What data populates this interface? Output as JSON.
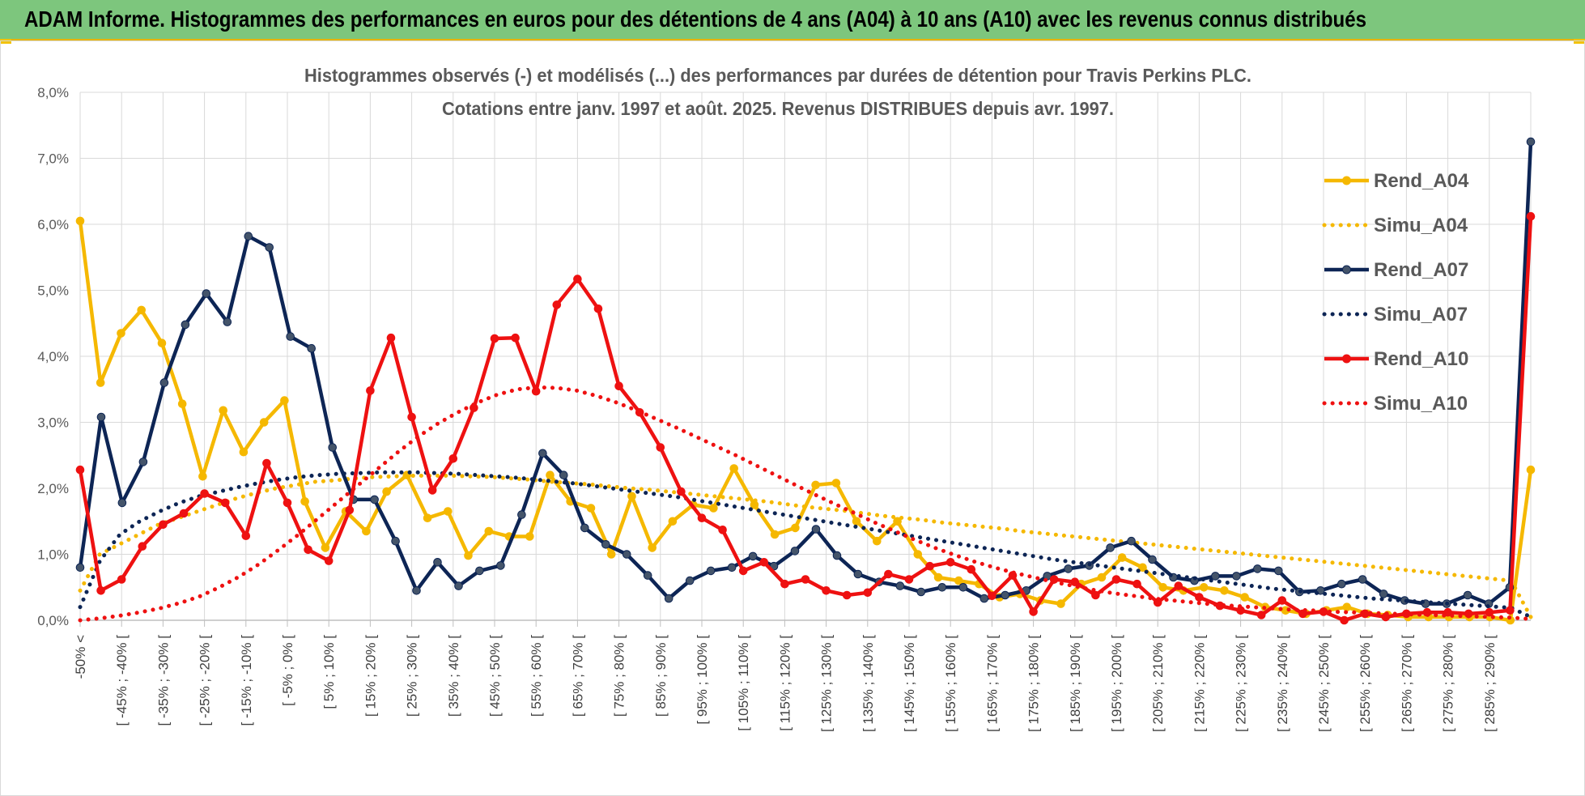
{
  "header": {
    "title": "ADAM Informe. Histogrammes des performances en euros pour des détentions de 4 ans (A04) à 10 ans (A10) avec les revenus connus distribués"
  },
  "chart_data": {
    "type": "line",
    "title": "Histogrammes observés (-) et modélisés (...) des performances par durées de détention pour Travis Perkins PLC.",
    "subtitle": "Cotations entre janv. 1997 et août. 2025. Revenus DISTRIBUES depuis avr. 1997.",
    "xlabel": "",
    "ylabel": "",
    "ylim": [
      0,
      8
    ],
    "yticks": [
      "0,0%",
      "1,0%",
      "2,0%",
      "3,0%",
      "4,0%",
      "5,0%",
      "6,0%",
      "7,0%",
      "8,0%"
    ],
    "grid": true,
    "legend_position": "right",
    "xtick_labels": [
      "-50% <",
      "[ -45% ; -40% [",
      "[ -35% ; -30% [",
      "[ -25% ; -20% [",
      "[ -15% ; -10% [",
      "[ -5% ; 0% [",
      "[ 5% ; 10% [",
      "[ 15% ; 20% [",
      "[ 25% ; 30% [",
      "[ 35% ; 40% [",
      "[ 45% ; 50% [",
      "[ 55% ; 60% [",
      "[ 65% ; 70% [",
      "[ 75% ; 80% [",
      "[ 85% ; 90% [",
      "[ 95% ; 100% [",
      "[ 105% ; 110% [",
      "[ 115% ; 120% [",
      "[ 125% ; 130% [",
      "[ 135% ; 140% [",
      "[ 145% ; 150% [",
      "[ 155% ; 160% [",
      "[ 165% ; 170% [",
      "[ 175% ; 180% [",
      "[ 185% ; 190% [",
      "[ 195% ; 200% [",
      "[ 205% ; 210% [",
      "[ 215% ; 220% [",
      "[ 225% ; 230% [",
      "[ 235% ; 240% [",
      "[ 245% ; 250% [",
      "[ 255% ; 260% [",
      "[ 265% ; 270% [",
      "[ 275% ; 280% [",
      "[ 285% ; 290% ["
    ],
    "series": [
      {
        "name": "Rend_A04",
        "style": "solid",
        "color": "#f5b800",
        "values": [
          6.05,
          3.6,
          4.35,
          4.7,
          4.2,
          3.28,
          2.18,
          3.18,
          2.55,
          3.0,
          3.33,
          1.8,
          1.1,
          1.65,
          1.35,
          1.95,
          2.2,
          1.55,
          1.65,
          0.98,
          1.35,
          1.27,
          1.27,
          2.2,
          1.8,
          1.7,
          1.0,
          1.88,
          1.1,
          1.5,
          1.75,
          1.7,
          2.3,
          1.75,
          1.3,
          1.4,
          2.05,
          2.08,
          1.5,
          1.2,
          1.5,
          1.0,
          0.65,
          0.6,
          0.55,
          0.35,
          0.4,
          0.3,
          0.25,
          0.55,
          0.65,
          0.95,
          0.8,
          0.5,
          0.45,
          0.5,
          0.45,
          0.35,
          0.2,
          0.15,
          0.1,
          0.15,
          0.2,
          0.1,
          0.08,
          0.05,
          0.05,
          0.05,
          0.05,
          0.05,
          0.0,
          2.28
        ]
      },
      {
        "name": "Simu_A04",
        "style": "dotted",
        "color": "#f5b800",
        "values": [
          0.45,
          1.0,
          1.15,
          1.3,
          1.45,
          1.55,
          1.65,
          1.75,
          1.85,
          1.93,
          2.0,
          2.05,
          2.1,
          2.12,
          2.15,
          2.17,
          2.18,
          2.19,
          2.19,
          2.19,
          2.18,
          2.17,
          2.15,
          2.13,
          2.1,
          2.08,
          2.06,
          2.03,
          2.0,
          1.98,
          1.95,
          1.92,
          1.89,
          1.86,
          1.83,
          1.8,
          1.76,
          1.72,
          1.69,
          1.66,
          1.62,
          1.58,
          1.55,
          1.52,
          1.48,
          1.45,
          1.42,
          1.39,
          1.35,
          1.32,
          1.29,
          1.26,
          1.23,
          1.2,
          1.17,
          1.14,
          1.11,
          1.08,
          1.05,
          1.02,
          0.99,
          0.96,
          0.93,
          0.9,
          0.87,
          0.84,
          0.81,
          0.78,
          0.75,
          0.72,
          0.69,
          0.66,
          0.63,
          0.6,
          0.05
        ]
      },
      {
        "name": "Rend_A07",
        "style": "solid",
        "color": "#0d2555",
        "values": [
          0.8,
          3.08,
          1.78,
          2.4,
          3.6,
          4.48,
          4.95,
          4.52,
          5.82,
          5.65,
          4.3,
          4.12,
          2.62,
          1.83,
          1.83,
          1.2,
          0.45,
          0.88,
          0.52,
          0.75,
          0.83,
          1.6,
          2.53,
          2.2,
          1.4,
          1.15,
          1.0,
          0.68,
          0.33,
          0.6,
          0.75,
          0.8,
          0.97,
          0.82,
          1.05,
          1.38,
          0.98,
          0.7,
          0.58,
          0.52,
          0.43,
          0.5,
          0.5,
          0.33,
          0.38,
          0.45,
          0.67,
          0.78,
          0.83,
          1.1,
          1.2,
          0.92,
          0.65,
          0.6,
          0.67,
          0.67,
          0.78,
          0.75,
          0.43,
          0.45,
          0.55,
          0.62,
          0.4,
          0.3,
          0.25,
          0.25,
          0.38,
          0.25,
          0.5,
          7.25
        ]
      },
      {
        "name": "Simu_A07",
        "style": "dotted",
        "color": "#0d2555",
        "values": [
          0.2,
          0.9,
          1.3,
          1.5,
          1.65,
          1.78,
          1.88,
          1.95,
          2.02,
          2.08,
          2.13,
          2.17,
          2.2,
          2.22,
          2.23,
          2.24,
          2.24,
          2.24,
          2.23,
          2.22,
          2.2,
          2.18,
          2.16,
          2.13,
          2.1,
          2.07,
          2.03,
          1.99,
          1.95,
          1.91,
          1.87,
          1.82,
          1.77,
          1.72,
          1.67,
          1.62,
          1.57,
          1.52,
          1.47,
          1.42,
          1.37,
          1.32,
          1.27,
          1.22,
          1.17,
          1.12,
          1.07,
          1.02,
          0.97,
          0.92,
          0.88,
          0.84,
          0.8,
          0.76,
          0.72,
          0.68,
          0.64,
          0.6,
          0.56,
          0.52,
          0.48,
          0.45,
          0.42,
          0.39,
          0.36,
          0.33,
          0.31,
          0.29,
          0.27,
          0.25,
          0.23,
          0.21,
          0.19,
          0.05
        ]
      },
      {
        "name": "Rend_A10",
        "style": "solid",
        "color": "#ee1111",
        "values": [
          2.28,
          0.45,
          0.62,
          1.12,
          1.45,
          1.62,
          1.92,
          1.78,
          1.28,
          2.38,
          1.78,
          1.07,
          0.9,
          1.67,
          3.48,
          4.28,
          3.08,
          1.97,
          2.45,
          3.22,
          4.27,
          4.28,
          3.47,
          4.78,
          5.17,
          4.72,
          3.55,
          3.15,
          2.62,
          1.95,
          1.55,
          1.37,
          0.75,
          0.88,
          0.55,
          0.62,
          0.45,
          0.38,
          0.42,
          0.7,
          0.62,
          0.82,
          0.88,
          0.77,
          0.37,
          0.68,
          0.13,
          0.62,
          0.58,
          0.38,
          0.62,
          0.55,
          0.27,
          0.52,
          0.35,
          0.22,
          0.15,
          0.08,
          0.3,
          0.1,
          0.13,
          0.0,
          0.1,
          0.05,
          0.1,
          0.12,
          0.12,
          0.1,
          0.12,
          0.15,
          6.12
        ]
      },
      {
        "name": "Simu_A10",
        "style": "dotted",
        "color": "#ee1111",
        "values": [
          0.0,
          0.03,
          0.07,
          0.12,
          0.18,
          0.26,
          0.36,
          0.5,
          0.66,
          0.85,
          1.07,
          1.3,
          1.55,
          1.8,
          2.05,
          2.3,
          2.55,
          2.78,
          2.98,
          3.15,
          3.3,
          3.42,
          3.5,
          3.53,
          3.52,
          3.48,
          3.4,
          3.3,
          3.18,
          3.05,
          2.92,
          2.78,
          2.64,
          2.5,
          2.35,
          2.2,
          2.05,
          1.9,
          1.76,
          1.62,
          1.48,
          1.35,
          1.22,
          1.1,
          0.99,
          0.89,
          0.8,
          0.72,
          0.65,
          0.58,
          0.52,
          0.46,
          0.41,
          0.37,
          0.33,
          0.3,
          0.27,
          0.24,
          0.22,
          0.2,
          0.18,
          0.16,
          0.15,
          0.13,
          0.12,
          0.11,
          0.1,
          0.09,
          0.08,
          0.07,
          0.06,
          0.05,
          0.04,
          0.02
        ]
      }
    ]
  }
}
